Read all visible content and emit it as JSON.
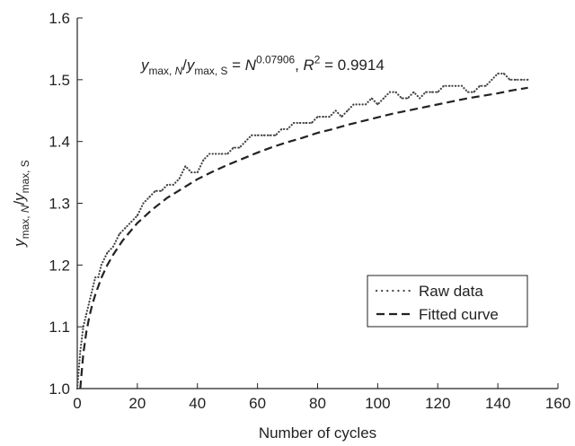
{
  "chart_data": {
    "type": "line",
    "xlabel": "Number of cycles",
    "ylabel": {
      "parts": [
        {
          "t": "y",
          "style": "italic"
        },
        {
          "t": "max, ",
          "sub": true
        },
        {
          "t": "N",
          "sub": true,
          "style": "italic"
        },
        {
          "t": "/"
        },
        {
          "t": "y",
          "style": "italic"
        },
        {
          "t": "max, S",
          "sub": true
        }
      ]
    },
    "annotation": {
      "parts": [
        {
          "t": "y",
          "style": "italic"
        },
        {
          "t": "max, ",
          "sub": true
        },
        {
          "t": "N",
          "sub": true,
          "style": "italic"
        },
        {
          "t": "/"
        },
        {
          "t": "y",
          "style": "italic"
        },
        {
          "t": "max, S",
          "sub": true
        },
        {
          "t": " = "
        },
        {
          "t": "N",
          "style": "italic"
        },
        {
          "t": "0.07906",
          "sup": true
        },
        {
          "t": ", "
        },
        {
          "t": "R",
          "style": "italic"
        },
        {
          "t": "2",
          "sup": true
        },
        {
          "t": " = 0.9914"
        }
      ]
    },
    "xlim": [
      0,
      160
    ],
    "ylim": [
      1.0,
      1.6
    ],
    "xticks": [
      0,
      20,
      40,
      60,
      80,
      100,
      120,
      140,
      160
    ],
    "yticks": [
      1.0,
      1.1,
      1.2,
      1.3,
      1.4,
      1.5,
      1.6
    ],
    "xtick_labels": [
      "0",
      "20",
      "40",
      "60",
      "80",
      "100",
      "120",
      "140",
      "160"
    ],
    "ytick_labels": [
      "1.0",
      "1.1",
      "1.2",
      "1.3",
      "1.4",
      "1.5",
      "1.6"
    ],
    "grid": false,
    "legend_position": "lower-right",
    "series": [
      {
        "name": "Raw data",
        "style": "dotted",
        "color": "#444444",
        "x": [
          0,
          1,
          2,
          3,
          4,
          5,
          6,
          7,
          8,
          10,
          12,
          14,
          16,
          18,
          20,
          22,
          24,
          26,
          28,
          30,
          32,
          34,
          36,
          38,
          40,
          42,
          44,
          46,
          48,
          50,
          52,
          54,
          56,
          58,
          60,
          62,
          64,
          66,
          68,
          70,
          72,
          74,
          76,
          78,
          80,
          82,
          84,
          86,
          88,
          90,
          92,
          94,
          96,
          98,
          100,
          102,
          104,
          106,
          108,
          110,
          112,
          114,
          116,
          118,
          120,
          122,
          124,
          126,
          128,
          130,
          132,
          134,
          136,
          138,
          140,
          142,
          144,
          146,
          148,
          150
        ],
        "y": [
          1.0,
          1.06,
          1.1,
          1.12,
          1.14,
          1.16,
          1.18,
          1.18,
          1.2,
          1.22,
          1.23,
          1.25,
          1.26,
          1.27,
          1.28,
          1.3,
          1.31,
          1.32,
          1.32,
          1.33,
          1.33,
          1.34,
          1.36,
          1.35,
          1.35,
          1.37,
          1.38,
          1.38,
          1.38,
          1.38,
          1.39,
          1.39,
          1.4,
          1.41,
          1.41,
          1.41,
          1.41,
          1.41,
          1.42,
          1.42,
          1.43,
          1.43,
          1.43,
          1.43,
          1.44,
          1.44,
          1.44,
          1.45,
          1.44,
          1.45,
          1.46,
          1.46,
          1.46,
          1.47,
          1.46,
          1.47,
          1.48,
          1.48,
          1.47,
          1.47,
          1.48,
          1.47,
          1.48,
          1.48,
          1.48,
          1.49,
          1.49,
          1.49,
          1.49,
          1.48,
          1.48,
          1.49,
          1.49,
          1.5,
          1.51,
          1.51,
          1.5,
          1.5,
          1.5,
          1.5
        ]
      },
      {
        "name": "Fitted curve",
        "style": "dashed",
        "color": "#222222",
        "function": "x^0.07906",
        "x": [
          1,
          2,
          3,
          4,
          5,
          6,
          8,
          10,
          12,
          15,
          20,
          25,
          30,
          35,
          40,
          45,
          50,
          55,
          60,
          65,
          70,
          75,
          80,
          85,
          90,
          95,
          100,
          105,
          110,
          115,
          120,
          125,
          130,
          135,
          140,
          145,
          150
        ],
        "y": [
          1.0,
          1.056,
          1.091,
          1.116,
          1.136,
          1.152,
          1.179,
          1.2,
          1.217,
          1.239,
          1.268,
          1.29,
          1.309,
          1.324,
          1.339,
          1.351,
          1.362,
          1.372,
          1.382,
          1.391,
          1.399,
          1.406,
          1.414,
          1.42,
          1.427,
          1.433,
          1.439,
          1.445,
          1.45,
          1.455,
          1.46,
          1.465,
          1.47,
          1.474,
          1.478,
          1.483,
          1.487
        ]
      }
    ]
  }
}
